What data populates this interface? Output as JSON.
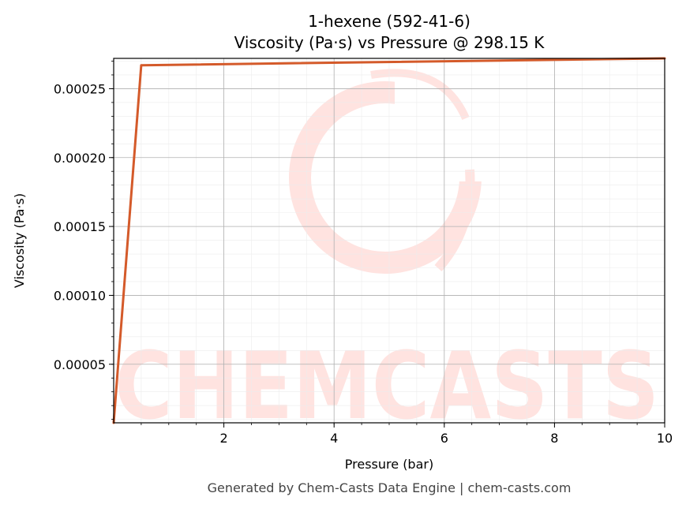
{
  "chart_data": {
    "type": "line",
    "title": "1-hexene (592-41-6)",
    "subtitle": "Viscosity (Pa·s) vs Pressure @ 298.15 K",
    "xlabel": "Pressure (bar)",
    "ylabel": "Viscosity (Pa·s)",
    "xlim": [
      0.0,
      10.0
    ],
    "ylim": [
      7.5e-06,
      0.000272
    ],
    "x_ticks": [
      2,
      4,
      6,
      8,
      10
    ],
    "x_tick_labels": [
      "2",
      "4",
      "6",
      "8",
      "10"
    ],
    "y_ticks": [
      5e-05,
      0.0001,
      0.00015,
      0.0002,
      0.00025
    ],
    "y_tick_labels": [
      "0.00005",
      "0.00010",
      "0.00015",
      "0.00020",
      "0.00025"
    ],
    "grid": true,
    "minor_grid": true,
    "series": [
      {
        "color": "#d45a2a",
        "x": [
          0.0,
          0.5,
          10.0
        ],
        "y": [
          7.5e-06,
          0.000267,
          0.000272
        ]
      }
    ]
  },
  "watermark": {
    "text": "CHEMCASTS",
    "color": "#ffe3e0"
  },
  "footer": {
    "text": "Generated by Chem-Casts Data Engine | chem-casts.com"
  }
}
